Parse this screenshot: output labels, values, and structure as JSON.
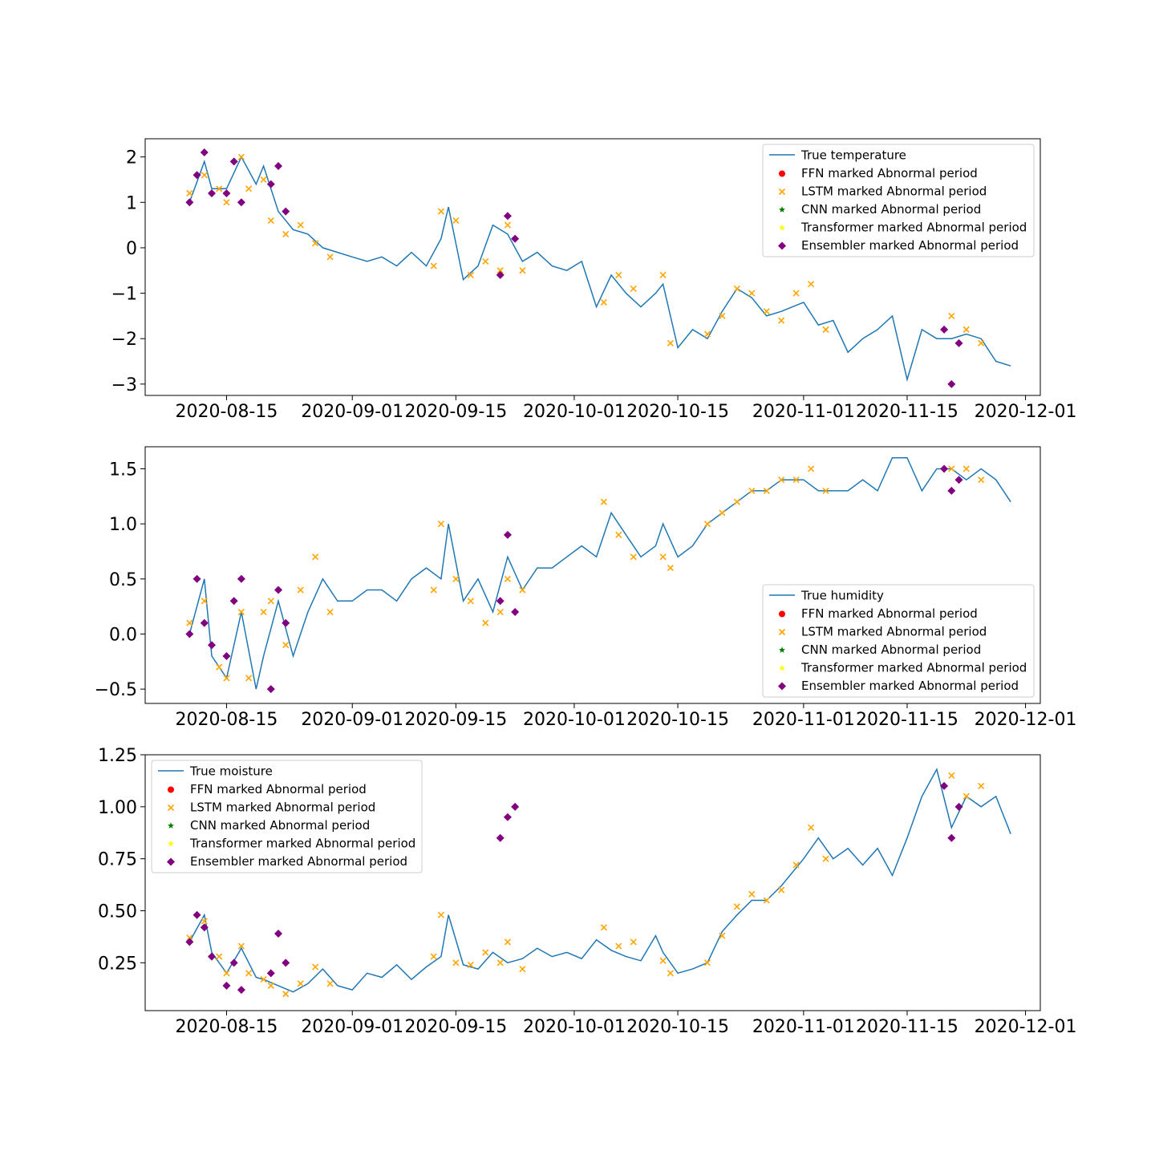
{
  "colors": {
    "series_line": "#1f77b4",
    "ffn": "#ff0000",
    "lstm": "#ffa500",
    "cnn": "#008000",
    "transformer": "#ffff00",
    "ensembler": "#800080"
  },
  "chart_data": [
    {
      "type": "line",
      "title": "",
      "xlabel": "",
      "ylabel": "",
      "x_ticks": [
        "2020-08-15",
        "2020-09-01",
        "2020-09-15",
        "2020-10-01",
        "2020-10-15",
        "2020-11-01",
        "2020-11-15",
        "2020-12-01"
      ],
      "y_ticks": [
        "−3",
        "−2",
        "−1",
        "0",
        "1",
        "2"
      ],
      "y_tick_values": [
        -3,
        -2,
        -1,
        0,
        1,
        2
      ],
      "xlim": [
        "2020-08-04",
        "2020-12-03"
      ],
      "ylim": [
        -3.25,
        2.4
      ],
      "legend_position": "upper right",
      "legend": [
        "True temperature",
        "FFN marked Abnormal period",
        "LSTM marked Abnormal period",
        "CNN marked Abnormal period",
        "Transformer marked Abnormal period",
        "Ensembler marked Abnormal period"
      ],
      "series": [
        {
          "name": "True temperature",
          "x": [
            "2020-08-10",
            "2020-08-12",
            "2020-08-13",
            "2020-08-15",
            "2020-08-17",
            "2020-08-19",
            "2020-08-20",
            "2020-08-22",
            "2020-08-24",
            "2020-08-26",
            "2020-08-28",
            "2020-08-30",
            "2020-09-01",
            "2020-09-03",
            "2020-09-05",
            "2020-09-07",
            "2020-09-09",
            "2020-09-11",
            "2020-09-13",
            "2020-09-14",
            "2020-09-16",
            "2020-09-18",
            "2020-09-20",
            "2020-09-22",
            "2020-09-24",
            "2020-09-26",
            "2020-09-28",
            "2020-09-30",
            "2020-10-02",
            "2020-10-04",
            "2020-10-06",
            "2020-10-08",
            "2020-10-10",
            "2020-10-12",
            "2020-10-13",
            "2020-10-15",
            "2020-10-17",
            "2020-10-19",
            "2020-10-21",
            "2020-10-23",
            "2020-10-25",
            "2020-10-27",
            "2020-10-29",
            "2020-11-01",
            "2020-11-03",
            "2020-11-05",
            "2020-11-07",
            "2020-11-09",
            "2020-11-11",
            "2020-11-13",
            "2020-11-15",
            "2020-11-17",
            "2020-11-19",
            "2020-11-21",
            "2020-11-23",
            "2020-11-25",
            "2020-11-27",
            "2020-11-29"
          ],
          "values": [
            1.0,
            1.9,
            1.3,
            1.3,
            2.0,
            1.4,
            1.8,
            0.8,
            0.4,
            0.3,
            0.0,
            -0.1,
            -0.2,
            -0.3,
            -0.2,
            -0.4,
            -0.1,
            -0.4,
            0.2,
            0.9,
            -0.7,
            -0.4,
            0.5,
            0.3,
            -0.3,
            -0.1,
            -0.4,
            -0.5,
            -0.3,
            -1.3,
            -0.6,
            -1.0,
            -1.3,
            -1.0,
            -0.8,
            -2.2,
            -1.8,
            -2.0,
            -1.4,
            -0.9,
            -1.1,
            -1.5,
            -1.4,
            -1.2,
            -1.7,
            -1.6,
            -2.3,
            -2.0,
            -1.8,
            -1.5,
            -2.9,
            -1.8,
            -2.0,
            -2.0,
            -1.9,
            -2.0,
            -2.5,
            -2.6
          ]
        },
        {
          "name": "LSTM marked Abnormal period",
          "x": [
            "2020-08-10",
            "2020-08-12",
            "2020-08-14",
            "2020-08-15",
            "2020-08-17",
            "2020-08-18",
            "2020-08-20",
            "2020-08-21",
            "2020-08-23",
            "2020-08-25",
            "2020-08-27",
            "2020-08-29",
            "2020-09-12",
            "2020-09-13",
            "2020-09-15",
            "2020-09-17",
            "2020-09-19",
            "2020-09-21",
            "2020-09-22",
            "2020-09-24",
            "2020-10-05",
            "2020-10-07",
            "2020-10-09",
            "2020-10-13",
            "2020-10-14",
            "2020-10-19",
            "2020-10-21",
            "2020-10-23",
            "2020-10-25",
            "2020-10-27",
            "2020-10-29",
            "2020-10-31",
            "2020-11-02",
            "2020-11-04",
            "2020-11-21",
            "2020-11-23",
            "2020-11-25"
          ],
          "values": [
            1.2,
            1.6,
            1.3,
            1.0,
            2.0,
            1.3,
            1.5,
            0.6,
            0.3,
            0.5,
            0.1,
            -0.2,
            -0.4,
            0.8,
            0.6,
            -0.6,
            -0.3,
            -0.5,
            0.5,
            -0.5,
            -1.2,
            -0.6,
            -0.9,
            -0.6,
            -2.1,
            -1.9,
            -1.5,
            -0.9,
            -1.0,
            -1.4,
            -1.6,
            -1.0,
            -0.8,
            -1.8,
            -1.5,
            -1.8,
            -2.1
          ]
        },
        {
          "name": "Ensembler marked Abnormal period",
          "x": [
            "2020-08-10",
            "2020-08-11",
            "2020-08-12",
            "2020-08-13",
            "2020-08-15",
            "2020-08-16",
            "2020-08-17",
            "2020-08-21",
            "2020-08-22",
            "2020-08-23",
            "2020-09-21",
            "2020-09-22",
            "2020-09-23",
            "2020-11-20",
            "2020-11-21",
            "2020-11-22"
          ],
          "values": [
            1.0,
            1.6,
            2.1,
            1.2,
            1.2,
            1.9,
            1.0,
            1.4,
            1.8,
            0.8,
            -0.6,
            0.7,
            0.2,
            -1.8,
            -3.0,
            -2.1
          ]
        }
      ]
    },
    {
      "type": "line",
      "title": "",
      "xlabel": "",
      "ylabel": "",
      "x_ticks": [
        "2020-08-15",
        "2020-09-01",
        "2020-09-15",
        "2020-10-01",
        "2020-10-15",
        "2020-11-01",
        "2020-11-15",
        "2020-12-01"
      ],
      "y_ticks": [
        "−0.5",
        "0.0",
        "0.5",
        "1.0",
        "1.5"
      ],
      "y_tick_values": [
        -0.5,
        0.0,
        0.5,
        1.0,
        1.5
      ],
      "xlim": [
        "2020-08-04",
        "2020-12-03"
      ],
      "ylim": [
        -0.63,
        1.7
      ],
      "legend_position": "lower right",
      "legend": [
        "True humidity",
        "FFN marked Abnormal period",
        "LSTM marked Abnormal period",
        "CNN marked Abnormal period",
        "Transformer marked Abnormal period",
        "Ensembler marked Abnormal period"
      ],
      "series": [
        {
          "name": "True humidity",
          "x": [
            "2020-08-10",
            "2020-08-12",
            "2020-08-13",
            "2020-08-15",
            "2020-08-17",
            "2020-08-19",
            "2020-08-20",
            "2020-08-22",
            "2020-08-24",
            "2020-08-26",
            "2020-08-28",
            "2020-08-30",
            "2020-09-01",
            "2020-09-03",
            "2020-09-05",
            "2020-09-07",
            "2020-09-09",
            "2020-09-11",
            "2020-09-13",
            "2020-09-14",
            "2020-09-16",
            "2020-09-18",
            "2020-09-20",
            "2020-09-22",
            "2020-09-24",
            "2020-09-26",
            "2020-09-28",
            "2020-09-30",
            "2020-10-02",
            "2020-10-04",
            "2020-10-06",
            "2020-10-08",
            "2020-10-10",
            "2020-10-12",
            "2020-10-13",
            "2020-10-15",
            "2020-10-17",
            "2020-10-19",
            "2020-10-21",
            "2020-10-23",
            "2020-10-25",
            "2020-10-27",
            "2020-10-29",
            "2020-11-01",
            "2020-11-03",
            "2020-11-05",
            "2020-11-07",
            "2020-11-09",
            "2020-11-11",
            "2020-11-13",
            "2020-11-15",
            "2020-11-17",
            "2020-11-19",
            "2020-11-21",
            "2020-11-23",
            "2020-11-25",
            "2020-11-27",
            "2020-11-29"
          ],
          "values": [
            0.0,
            0.5,
            -0.2,
            -0.4,
            0.2,
            -0.5,
            -0.2,
            0.3,
            -0.2,
            0.2,
            0.5,
            0.3,
            0.3,
            0.4,
            0.4,
            0.3,
            0.5,
            0.6,
            0.5,
            1.0,
            0.3,
            0.5,
            0.2,
            0.7,
            0.4,
            0.6,
            0.6,
            0.7,
            0.8,
            0.7,
            1.1,
            0.9,
            0.7,
            0.8,
            1.0,
            0.7,
            0.8,
            1.0,
            1.1,
            1.2,
            1.3,
            1.3,
            1.4,
            1.4,
            1.3,
            1.3,
            1.3,
            1.4,
            1.3,
            1.6,
            1.6,
            1.3,
            1.5,
            1.5,
            1.4,
            1.5,
            1.4,
            1.2
          ]
        },
        {
          "name": "LSTM marked Abnormal period",
          "x": [
            "2020-08-10",
            "2020-08-12",
            "2020-08-14",
            "2020-08-15",
            "2020-08-17",
            "2020-08-18",
            "2020-08-20",
            "2020-08-21",
            "2020-08-23",
            "2020-08-25",
            "2020-08-27",
            "2020-08-29",
            "2020-09-12",
            "2020-09-13",
            "2020-09-15",
            "2020-09-17",
            "2020-09-19",
            "2020-09-21",
            "2020-09-22",
            "2020-09-24",
            "2020-10-05",
            "2020-10-07",
            "2020-10-09",
            "2020-10-13",
            "2020-10-14",
            "2020-10-19",
            "2020-10-21",
            "2020-10-23",
            "2020-10-25",
            "2020-10-27",
            "2020-10-29",
            "2020-10-31",
            "2020-11-02",
            "2020-11-04",
            "2020-11-21",
            "2020-11-23",
            "2020-11-25"
          ],
          "values": [
            0.1,
            0.3,
            -0.3,
            -0.4,
            0.2,
            -0.4,
            0.2,
            0.3,
            -0.1,
            0.4,
            0.7,
            0.2,
            0.4,
            1.0,
            0.5,
            0.3,
            0.1,
            0.2,
            0.5,
            0.4,
            1.2,
            0.9,
            0.7,
            0.7,
            0.6,
            1.0,
            1.1,
            1.2,
            1.3,
            1.3,
            1.4,
            1.4,
            1.5,
            1.3,
            1.5,
            1.5,
            1.4
          ]
        },
        {
          "name": "Ensembler marked Abnormal period",
          "x": [
            "2020-08-10",
            "2020-08-11",
            "2020-08-12",
            "2020-08-13",
            "2020-08-15",
            "2020-08-16",
            "2020-08-17",
            "2020-08-21",
            "2020-08-22",
            "2020-08-23",
            "2020-09-21",
            "2020-09-22",
            "2020-09-23",
            "2020-11-20",
            "2020-11-21",
            "2020-11-22"
          ],
          "values": [
            0.0,
            0.5,
            0.1,
            -0.1,
            -0.2,
            0.3,
            0.5,
            -0.5,
            0.4,
            0.1,
            0.3,
            0.9,
            0.2,
            1.5,
            1.3,
            1.4
          ]
        }
      ]
    },
    {
      "type": "line",
      "title": "",
      "xlabel": "",
      "ylabel": "",
      "x_ticks": [
        "2020-08-15",
        "2020-09-01",
        "2020-09-15",
        "2020-10-01",
        "2020-10-15",
        "2020-11-01",
        "2020-11-15",
        "2020-12-01"
      ],
      "y_ticks": [
        "0.25",
        "0.50",
        "0.75",
        "1.00",
        "1.25"
      ],
      "y_tick_values": [
        0.25,
        0.5,
        0.75,
        1.0,
        1.25
      ],
      "xlim": [
        "2020-08-04",
        "2020-12-03"
      ],
      "ylim": [
        0.02,
        1.25
      ],
      "legend_position": "upper left",
      "legend": [
        "True moisture",
        "FFN marked Abnormal period",
        "LSTM marked Abnormal period",
        "CNN marked Abnormal period",
        "Transformer marked Abnormal period",
        "Ensembler marked Abnormal period"
      ],
      "series": [
        {
          "name": "True moisture",
          "x": [
            "2020-08-10",
            "2020-08-12",
            "2020-08-13",
            "2020-08-15",
            "2020-08-17",
            "2020-08-19",
            "2020-08-20",
            "2020-08-22",
            "2020-08-24",
            "2020-08-26",
            "2020-08-28",
            "2020-08-30",
            "2020-09-01",
            "2020-09-03",
            "2020-09-05",
            "2020-09-07",
            "2020-09-09",
            "2020-09-11",
            "2020-09-13",
            "2020-09-14",
            "2020-09-16",
            "2020-09-18",
            "2020-09-20",
            "2020-09-22",
            "2020-09-24",
            "2020-09-26",
            "2020-09-28",
            "2020-09-30",
            "2020-10-02",
            "2020-10-04",
            "2020-10-06",
            "2020-10-08",
            "2020-10-10",
            "2020-10-12",
            "2020-10-13",
            "2020-10-15",
            "2020-10-17",
            "2020-10-19",
            "2020-10-21",
            "2020-10-23",
            "2020-10-25",
            "2020-10-27",
            "2020-10-29",
            "2020-11-01",
            "2020-11-03",
            "2020-11-05",
            "2020-11-07",
            "2020-11-09",
            "2020-11-11",
            "2020-11-13",
            "2020-11-15",
            "2020-11-17",
            "2020-11-19",
            "2020-11-21",
            "2020-11-23",
            "2020-11-25",
            "2020-11-27",
            "2020-11-29"
          ],
          "values": [
            0.35,
            0.48,
            0.3,
            0.2,
            0.32,
            0.18,
            0.17,
            0.14,
            0.11,
            0.15,
            0.22,
            0.14,
            0.12,
            0.2,
            0.18,
            0.24,
            0.17,
            0.23,
            0.28,
            0.48,
            0.24,
            0.22,
            0.3,
            0.25,
            0.27,
            0.32,
            0.28,
            0.3,
            0.27,
            0.36,
            0.31,
            0.28,
            0.26,
            0.38,
            0.3,
            0.2,
            0.22,
            0.25,
            0.4,
            0.48,
            0.55,
            0.55,
            0.62,
            0.75,
            0.85,
            0.75,
            0.8,
            0.72,
            0.8,
            0.67,
            0.85,
            1.05,
            1.18,
            0.9,
            1.05,
            1.0,
            1.05,
            0.87
          ]
        },
        {
          "name": "LSTM marked Abnormal period",
          "x": [
            "2020-08-10",
            "2020-08-12",
            "2020-08-14",
            "2020-08-15",
            "2020-08-17",
            "2020-08-18",
            "2020-08-20",
            "2020-08-21",
            "2020-08-23",
            "2020-08-25",
            "2020-08-27",
            "2020-08-29",
            "2020-09-12",
            "2020-09-13",
            "2020-09-15",
            "2020-09-17",
            "2020-09-19",
            "2020-09-21",
            "2020-09-22",
            "2020-09-24",
            "2020-10-05",
            "2020-10-07",
            "2020-10-09",
            "2020-10-13",
            "2020-10-14",
            "2020-10-19",
            "2020-10-21",
            "2020-10-23",
            "2020-10-25",
            "2020-10-27",
            "2020-10-29",
            "2020-10-31",
            "2020-11-02",
            "2020-11-04",
            "2020-11-21",
            "2020-11-23",
            "2020-11-25"
          ],
          "values": [
            0.37,
            0.45,
            0.28,
            0.2,
            0.33,
            0.2,
            0.17,
            0.14,
            0.1,
            0.15,
            0.23,
            0.15,
            0.28,
            0.48,
            0.25,
            0.24,
            0.3,
            0.25,
            0.35,
            0.22,
            0.42,
            0.33,
            0.35,
            0.26,
            0.2,
            0.25,
            0.38,
            0.52,
            0.58,
            0.55,
            0.6,
            0.72,
            0.9,
            0.75,
            1.15,
            1.05,
            1.1
          ]
        },
        {
          "name": "Ensembler marked Abnormal period",
          "x": [
            "2020-08-10",
            "2020-08-11",
            "2020-08-12",
            "2020-08-13",
            "2020-08-15",
            "2020-08-16",
            "2020-08-17",
            "2020-08-21",
            "2020-08-22",
            "2020-08-23",
            "2020-09-21",
            "2020-09-22",
            "2020-09-23",
            "2020-11-20",
            "2020-11-21",
            "2020-11-22"
          ],
          "values": [
            0.35,
            0.48,
            0.42,
            0.28,
            0.14,
            0.25,
            0.12,
            0.2,
            0.39,
            0.25,
            0.85,
            0.95,
            1.0,
            1.1,
            0.85,
            1.0
          ]
        }
      ]
    }
  ]
}
